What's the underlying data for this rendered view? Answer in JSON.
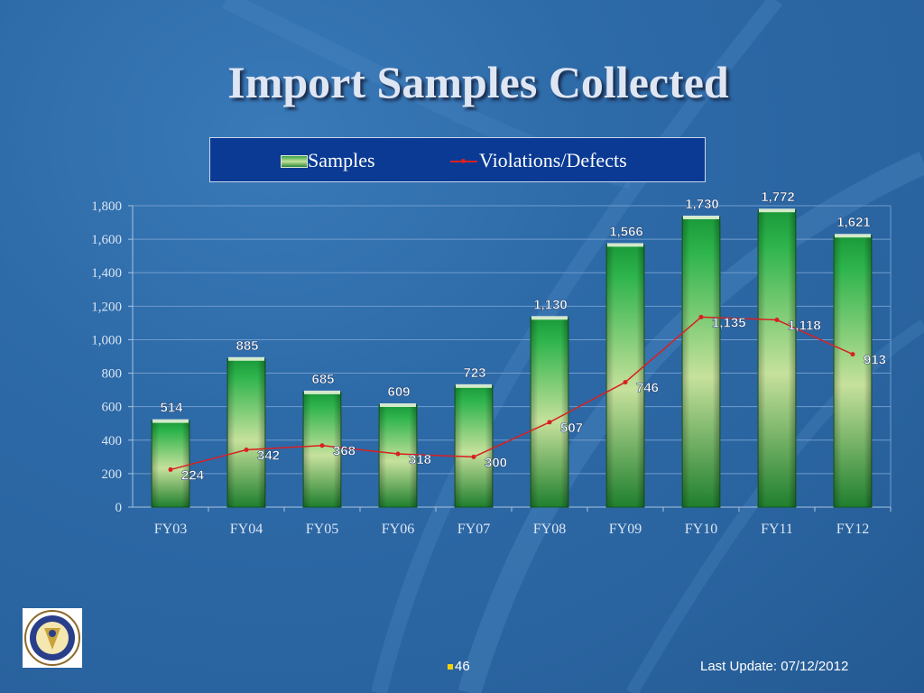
{
  "title": "Import Samples Collected",
  "legend": {
    "bar_label": "Samples",
    "line_label": "Violations/Defects"
  },
  "footer": {
    "page_number": "46",
    "last_update": "Last Update: 07/12/2012"
  },
  "logo": {
    "lettering": "CONSUMER PRODUCT SAFETY COMMISSION · UNITED STATES OF AMERICA"
  },
  "colors": {
    "bar_dark": "#1f7f2e",
    "bar_light": "#c6e19c",
    "line": "#d92020",
    "legend_bg": "#0a3a94"
  },
  "chart_data": {
    "type": "bar",
    "categories": [
      "FY03",
      "FY04",
      "FY05",
      "FY06",
      "FY07",
      "FY08",
      "FY09",
      "FY10",
      "FY11",
      "FY12"
    ],
    "series": [
      {
        "name": "Samples",
        "type": "bar",
        "values": [
          514,
          885,
          685,
          609,
          723,
          1130,
          1566,
          1730,
          1772,
          1621
        ],
        "labels": [
          "514",
          "885",
          "685",
          "609",
          "723",
          "1,130",
          "1,566",
          "1,730",
          "1,772",
          "1,621"
        ]
      },
      {
        "name": "Violations/Defects",
        "type": "line",
        "values": [
          224,
          342,
          368,
          318,
          300,
          507,
          746,
          1135,
          1118,
          913
        ],
        "labels": [
          "224",
          "342",
          "368",
          "318",
          "300",
          "507",
          "746",
          "1,135",
          "1,118",
          "913"
        ]
      }
    ],
    "ylim": [
      0,
      1800
    ],
    "yticks": [
      0,
      200,
      400,
      600,
      800,
      1000,
      1200,
      1400,
      1600,
      1800
    ],
    "ytick_labels": [
      "0",
      "200",
      "400",
      "600",
      "800",
      "1,000",
      "1,200",
      "1,400",
      "1,600",
      "1,800"
    ],
    "grid": true,
    "legend_position": "top"
  }
}
